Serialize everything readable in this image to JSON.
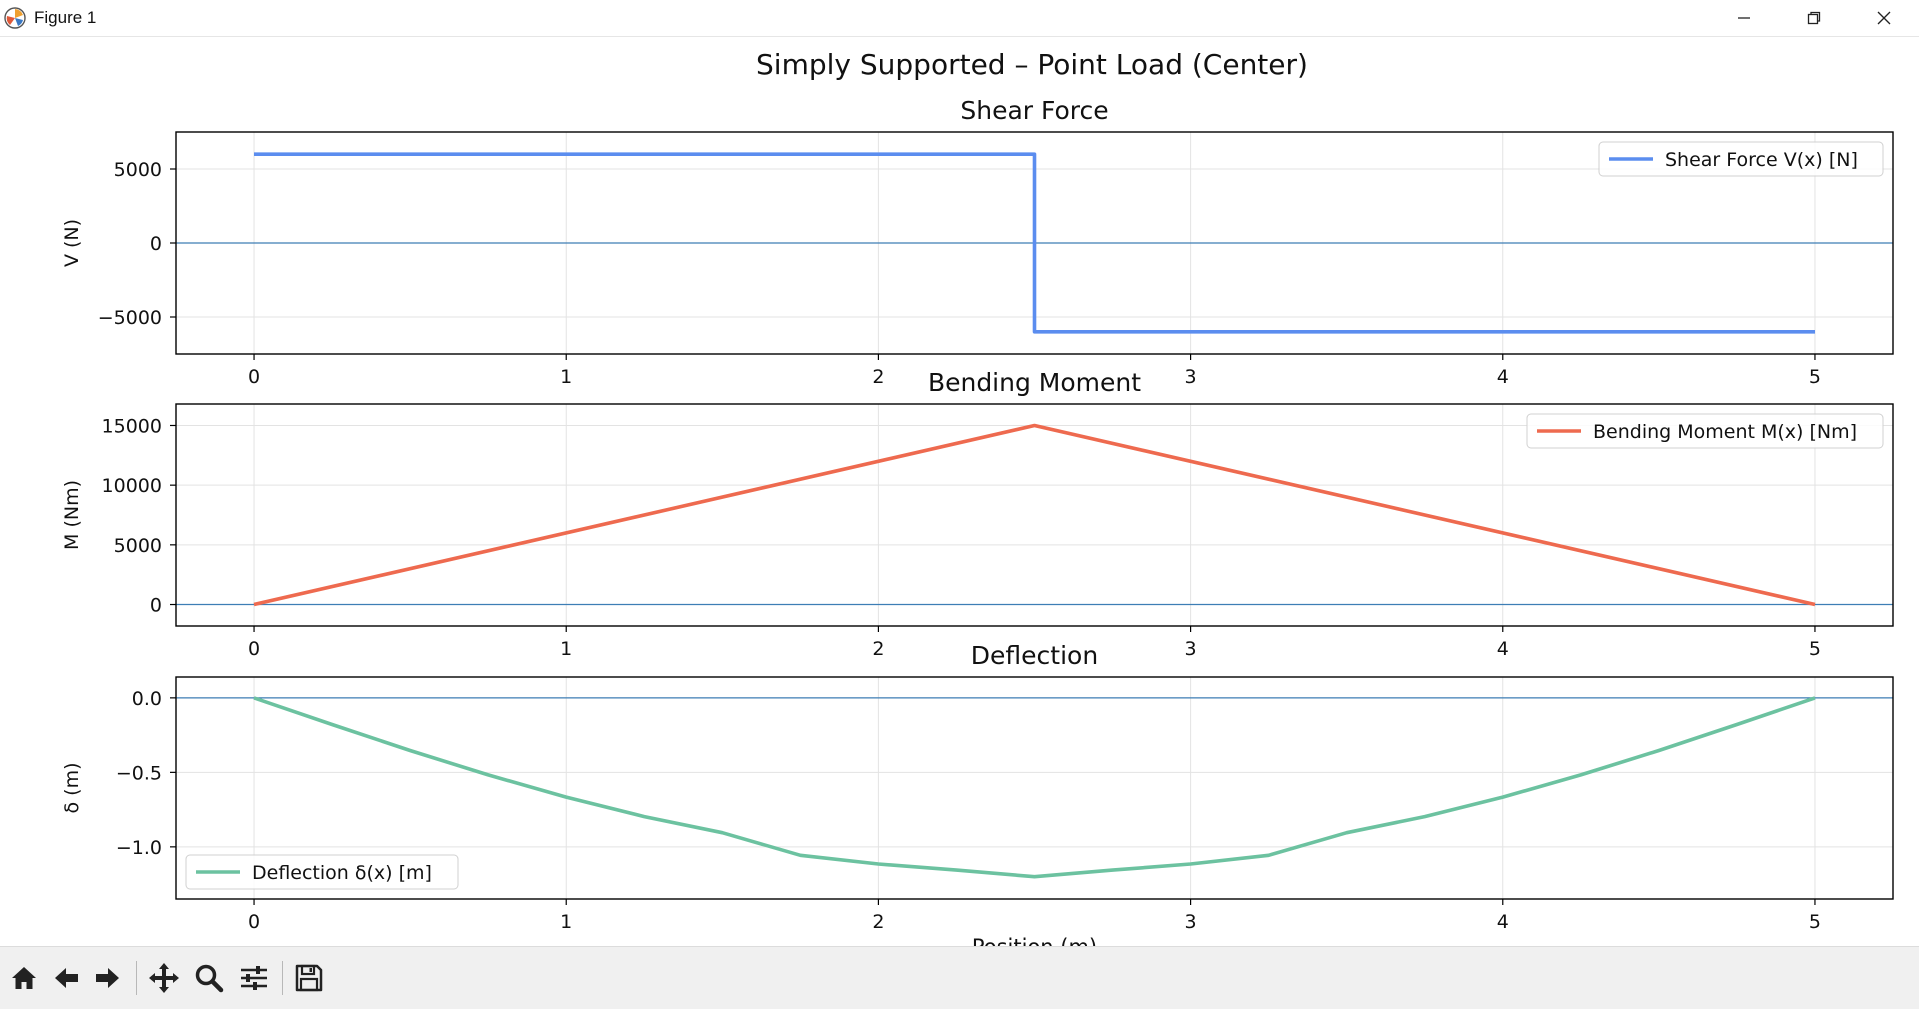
{
  "window": {
    "title": "Figure 1"
  },
  "colors": {
    "shear": "#5b8def",
    "moment": "#ee6a4f",
    "deflection": "#6cc2a0",
    "baseline": "#3d7eb5",
    "grid": "#e3e3e3"
  },
  "toolbar": {
    "icons": [
      "home-icon",
      "back-arrow-icon",
      "forward-arrow-icon",
      "pan-move-icon",
      "zoom-magnifier-icon",
      "configure-subplots-icon",
      "save-disk-icon"
    ]
  },
  "chart_data": {
    "type": "line",
    "suptitle": "Simply Supported – Point Load (Center)",
    "xlim": [
      -0.25,
      5.25
    ],
    "xticks": [
      0,
      1,
      2,
      3,
      4,
      5
    ],
    "bottom_xlabel_partial": "Position (m)",
    "subplots": [
      {
        "title": "Shear Force",
        "ylabel": "V (N)",
        "ylim": [
          -7500,
          7500
        ],
        "yticks": [
          5000,
          0,
          -5000
        ],
        "yticklabels": [
          "5000",
          "0",
          "−5000"
        ],
        "legend": "top-right",
        "grid": true,
        "series": [
          {
            "name": "Shear Force V(x) [N]",
            "color_key": "shear",
            "x": [
              0,
              2.5,
              2.5,
              5
            ],
            "y": [
              6000,
              6000,
              -6000,
              -6000
            ]
          }
        ]
      },
      {
        "title": "Bending Moment",
        "ylabel": "M (Nm)",
        "ylim": [
          -1800,
          16800
        ],
        "yticks": [
          15000,
          10000,
          5000,
          0
        ],
        "yticklabels": [
          "15000",
          "10000",
          "5000",
          "0"
        ],
        "legend": "top-right",
        "grid": true,
        "series": [
          {
            "name": "Bending Moment M(x) [Nm]",
            "color_key": "moment",
            "x": [
              0,
              2.5,
              5
            ],
            "y": [
              0,
              15000,
              0
            ]
          }
        ]
      },
      {
        "title": "Deflection",
        "ylabel": "δ (m)",
        "ylim": [
          -1.35,
          0.14
        ],
        "yticks": [
          0,
          -0.5,
          -1
        ],
        "yticklabels": [
          "0.0",
          "−0.5",
          "−1.0"
        ],
        "legend": "bottom-left",
        "grid": true,
        "series": [
          {
            "name": "Deflection δ(x) [m]",
            "color_key": "deflection",
            "x": [
              0,
              0.25,
              0.5,
              0.75,
              1,
              1.25,
              1.5,
              1.75,
              2,
              2.25,
              2.5,
              2.75,
              3,
              3.25,
              3.5,
              3.75,
              4,
              4.25,
              4.5,
              4.75,
              5
            ],
            "y": [
              0,
              -0.179,
              -0.353,
              -0.517,
              -0.666,
              -0.797,
              -0.905,
              -1.057,
              -1.115,
              -1.156,
              -1.2,
              -1.156,
              -1.115,
              -1.057,
              -0.905,
              -0.797,
              -0.666,
              -0.517,
              -0.353,
              -0.179,
              0
            ]
          }
        ]
      }
    ]
  }
}
